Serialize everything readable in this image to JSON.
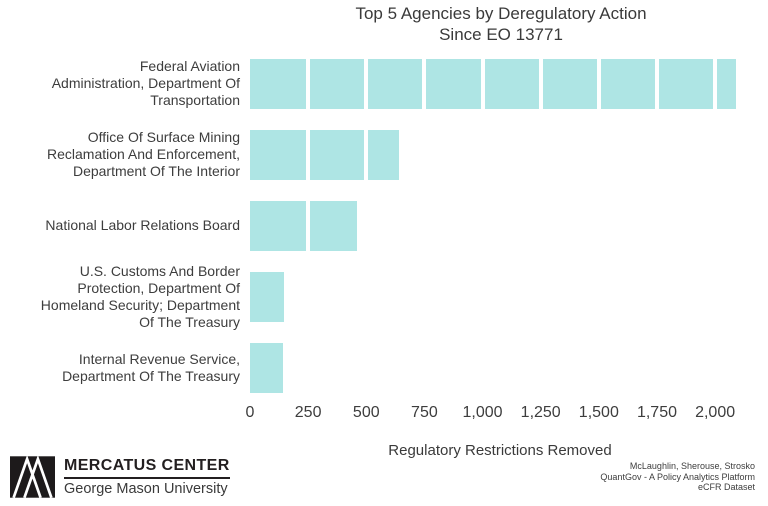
{
  "chart": {
    "title": "Top 5 Agencies by Deregulatory Action\nSince EO 13771"
  },
  "chart_data": {
    "type": "bar",
    "orientation": "horizontal",
    "title": "Top 5 Agencies by Deregulatory Action Since EO 13771",
    "categories": [
      "Federal Aviation\nAdministration, Department Of\nTransportation",
      "Office Of Surface Mining\nReclamation And Enforcement,\nDepartment Of The Interior",
      "National Labor Relations Board",
      "U.S. Customs And Border\nProtection, Department Of\nHomeland Security; Department\nOf The Treasury",
      "Internal Revenue Service,\nDepartment Of The Treasury"
    ],
    "values": [
      2090,
      640,
      460,
      147,
      140
    ],
    "xlabel": "Regulatory Restrictions Removed",
    "ylabel": "",
    "xlim": [
      0,
      2150
    ],
    "xticks": [
      0,
      250,
      500,
      750,
      1000,
      1250,
      1500,
      1750,
      2000
    ],
    "xtick_labels": [
      "0",
      "250",
      "500",
      "750",
      "1,000",
      "1,250",
      "1,500",
      "1,750",
      "2,000"
    ],
    "bar_color": "#aee5e4",
    "gridline_color": "#ffffff",
    "grid": "white vertical gridlines drawn over bars",
    "legend": "none"
  },
  "footer": {
    "logo": {
      "org": "MERCATUS CENTER",
      "sub": "George Mason University",
      "mark_icon": "mercatus-m-mark"
    },
    "attribution": "McLaughlin, Sherouse, Strosko\nQuantGov - A Policy Analytics Platform\neCFR Dataset"
  }
}
